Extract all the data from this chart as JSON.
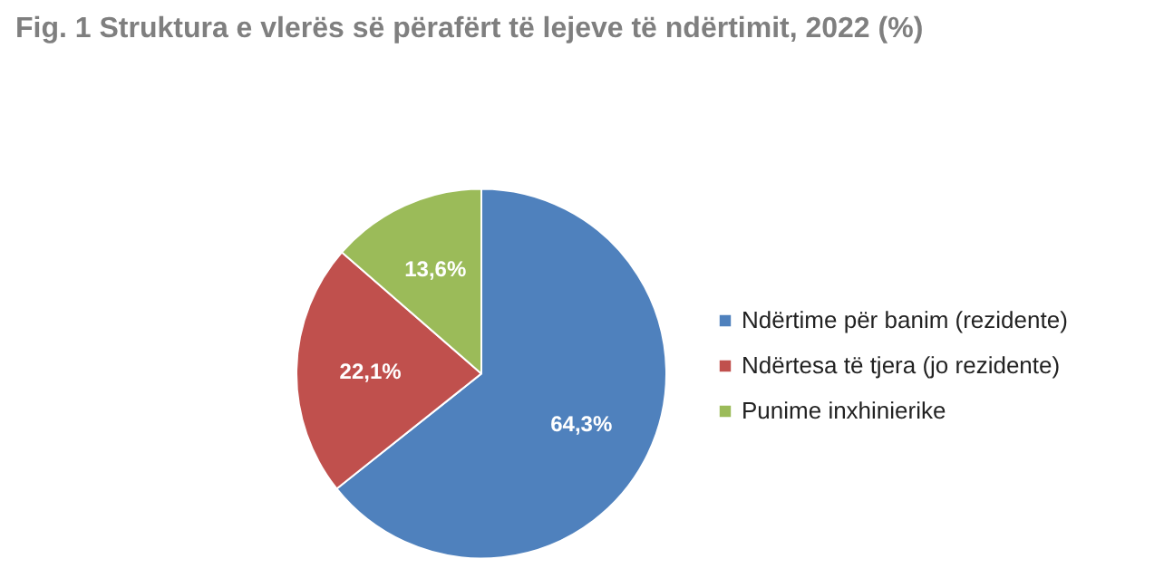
{
  "chart_data": {
    "type": "pie",
    "title": "Fig. 1 Struktura e vlerës së përafërt të lejeve të ndërtimit, 2022    (%)",
    "categories": [
      "Ndërtime për banim (rezidente)",
      "Ndërtesa të tjera (jo rezidente)",
      "Punime inxhinierike"
    ],
    "values": [
      64.3,
      22.1,
      13.6
    ],
    "colors": [
      "#4f81bd",
      "#c0504d",
      "#9bbb59"
    ],
    "value_labels": [
      "64,3%",
      "22,1%",
      "13,6%"
    ],
    "legend": "right"
  }
}
